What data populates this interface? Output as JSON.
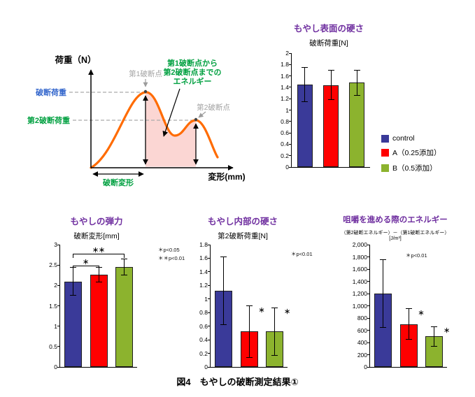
{
  "figure": {
    "caption": "図4　もやしの破断測定結果①"
  },
  "bar_colors": [
    "#3A3A99",
    "#FF0000",
    "#8CB32E"
  ],
  "legend": {
    "items": [
      {
        "label": "control",
        "color": "#3A3A99"
      },
      {
        "label": "A（0.25添加）",
        "color": "#FF0000"
      },
      {
        "label": "B（0.5添加）",
        "color": "#8CB32E"
      }
    ]
  },
  "diagram": {
    "ylabel": "荷重（N）",
    "xlabel": "変形(mm)",
    "break1_label": "第1破断点",
    "break2_label": "第2破断点",
    "break_load_label": "破断荷重",
    "break_load2_label": "第2破断荷重",
    "break_deform_label": "破断変形",
    "energy_note_line1": "第1破断点から",
    "energy_note_line2": "第2破断点までの",
    "energy_note_line3": "エネルギー",
    "curve_color": "#FF6B00",
    "area_color": "#FBD6D3"
  },
  "chart_data": [
    {
      "type": "bar",
      "title": "もやし表面の硬さ",
      "subtitle": "破断荷重[N]",
      "categories": [
        "control",
        "A（0.25添加）",
        "B（0.5添加）"
      ],
      "values": [
        1.45,
        1.44,
        1.48
      ],
      "errors": [
        0.3,
        0.26,
        0.22
      ],
      "ylim": [
        0,
        2
      ],
      "ytick_step": 0.2,
      "ytick_labels": [
        "0",
        "0.2",
        "0.4",
        "0.6",
        "0.8",
        "1",
        "1.2",
        "1.4",
        "1.6",
        "1.8",
        "2"
      ],
      "note": "",
      "stars": [],
      "comparisons": []
    },
    {
      "type": "bar",
      "title": "もやしの弾力",
      "subtitle": "破断変形[mm]",
      "categories": [
        "control",
        "A（0.25添加）",
        "B（0.5添加）"
      ],
      "values": [
        2.1,
        2.27,
        2.45
      ],
      "errors": [
        0.35,
        0.18,
        0.2
      ],
      "ylim": [
        0,
        3
      ],
      "ytick_step": 0.5,
      "ytick_labels": [
        "0",
        "0.5",
        "1",
        "1.5",
        "2",
        "2.5",
        "3"
      ],
      "note": "＊p<0.05\n＊＊p<0.01",
      "stars": [],
      "comparisons": [
        {
          "a": 0,
          "b": 2,
          "y": 2.78,
          "label": "＊＊"
        },
        {
          "a": 0,
          "b": 1,
          "y": 2.48,
          "label": "＊"
        }
      ]
    },
    {
      "type": "bar",
      "title": "もやし内部の硬さ",
      "subtitle": "第2破断荷重[N]",
      "categories": [
        "control",
        "A（0.25添加）",
        "B（0.5添加）"
      ],
      "values": [
        1.12,
        0.52,
        0.52
      ],
      "errors": [
        0.5,
        0.38,
        0.35
      ],
      "ylim": [
        0,
        1.8
      ],
      "ytick_step": 0.2,
      "ytick_labels": [
        "0",
        "0.2",
        "0.4",
        "0.6",
        "0.8",
        "1",
        "1.2",
        "1.4",
        "1.6",
        "1.8"
      ],
      "note": "＊p<0.01",
      "stars": [
        {
          "bar": 1,
          "label": "＊"
        },
        {
          "bar": 2,
          "label": "＊"
        }
      ],
      "comparisons": []
    },
    {
      "type": "bar",
      "title": "咀嚼を進める際のエネルギー",
      "subtitle": "（第2破断エネルギー）－（第1破断エネルギー）[J/m³]",
      "categories": [
        "control",
        "A（0.25添加）",
        "B（0.5添加）"
      ],
      "values": [
        1200,
        700,
        500
      ],
      "errors": [
        550,
        250,
        160
      ],
      "ylim": [
        0,
        2000
      ],
      "ytick_step": 200,
      "ytick_labels": [
        "0",
        "200",
        "400",
        "600",
        "800",
        "1,000",
        "1,200",
        "1,400",
        "1,600",
        "1,800",
        "2,000"
      ],
      "note": "＊p<0.01",
      "stars": [
        {
          "bar": 1,
          "label": "＊"
        },
        {
          "bar": 2,
          "label": "＊"
        }
      ],
      "comparisons": []
    }
  ]
}
